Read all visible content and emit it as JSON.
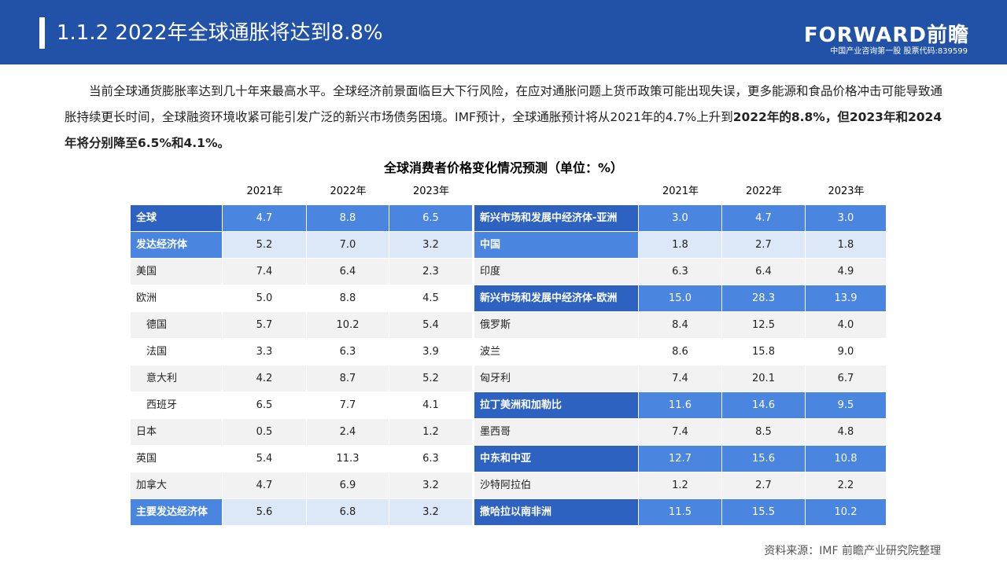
{
  "header": {
    "title": "1.1.2 2022年全球通胀将达到8.8%",
    "logo": "FORWARD前瞻",
    "tagline": "中国产业咨询第一股 股票代码:839599"
  },
  "body": {
    "paragraph": "当前全球通货膨胀率达到几十年来最高水平。全球经济前景面临巨大下行风险，在应对通胀问题上货币政策可能出现失误，更多能源和食品价格冲击可能导致通胀持续更长时间，全球融资环境收紧可能引发广泛的新兴市场债务困境。IMF预计，全球通胀预计将从2021年的4.7%上升到",
    "emphasis": "2022年的8.8%，但2023年和2024年将分别降至6.5%和4.1%。"
  },
  "table": {
    "title": "全球消费者价格变化情况预测（单位：%）",
    "left": {
      "columns": [
        "2021年",
        "2022年",
        "2023年"
      ],
      "rows": [
        {
          "label": "全球",
          "values": [
            "4.7",
            "8.8",
            "6.5"
          ],
          "style": "strong"
        },
        {
          "label": "发达经济体",
          "values": [
            "5.2",
            "7.0",
            "3.2"
          ],
          "style": "light"
        },
        {
          "label": "美国",
          "values": [
            "7.4",
            "6.4",
            "2.3"
          ]
        },
        {
          "label": "欧洲",
          "values": [
            "5.0",
            "8.8",
            "4.5"
          ]
        },
        {
          "label": "德国",
          "values": [
            "5.7",
            "10.2",
            "5.4"
          ],
          "indent": true
        },
        {
          "label": "法国",
          "values": [
            "3.3",
            "6.3",
            "3.9"
          ],
          "indent": true
        },
        {
          "label": "意大利",
          "values": [
            "4.2",
            "8.7",
            "5.2"
          ],
          "indent": true
        },
        {
          "label": "西班牙",
          "values": [
            "6.5",
            "7.7",
            "4.1"
          ],
          "indent": true
        },
        {
          "label": "日本",
          "values": [
            "0.5",
            "2.4",
            "1.2"
          ]
        },
        {
          "label": "英国",
          "values": [
            "5.4",
            "11.3",
            "6.3"
          ]
        },
        {
          "label": "加拿大",
          "values": [
            "4.7",
            "6.9",
            "3.2"
          ]
        },
        {
          "label": "主要发达经济体",
          "values": [
            "5.6",
            "6.8",
            "3.2"
          ],
          "style": "light"
        }
      ]
    },
    "right": {
      "columns": [
        "2021年",
        "2022年",
        "2023年"
      ],
      "rows": [
        {
          "label": "新兴市场和发展中经济体-亚洲",
          "values": [
            "3.0",
            "4.7",
            "3.0"
          ],
          "style": "strong"
        },
        {
          "label": "中国",
          "values": [
            "1.8",
            "2.7",
            "1.8"
          ],
          "style": "light"
        },
        {
          "label": "印度",
          "values": [
            "6.3",
            "6.4",
            "4.9"
          ]
        },
        {
          "label": "新兴市场和发展中经济体-欧洲",
          "values": [
            "15.0",
            "28.3",
            "13.9"
          ],
          "style": "strong"
        },
        {
          "label": "俄罗斯",
          "values": [
            "8.4",
            "12.5",
            "4.0"
          ]
        },
        {
          "label": "波兰",
          "values": [
            "8.6",
            "15.8",
            "9.0"
          ]
        },
        {
          "label": "匈牙利",
          "values": [
            "7.4",
            "20.1",
            "6.7"
          ]
        },
        {
          "label": "拉丁美洲和加勒比",
          "values": [
            "11.6",
            "14.6",
            "9.5"
          ],
          "style": "strong"
        },
        {
          "label": "墨西哥",
          "values": [
            "7.4",
            "8.5",
            "4.8"
          ]
        },
        {
          "label": "中东和中亚",
          "values": [
            "12.7",
            "15.6",
            "10.8"
          ],
          "style": "strong"
        },
        {
          "label": "沙特阿拉伯",
          "values": [
            "1.2",
            "2.7",
            "2.2"
          ]
        },
        {
          "label": "撒哈拉以南非洲",
          "values": [
            "11.5",
            "15.5",
            "10.2"
          ],
          "style": "strong"
        }
      ]
    }
  },
  "footer": {
    "source": "资料来源：IMF 前瞻产业研究院整理"
  }
}
